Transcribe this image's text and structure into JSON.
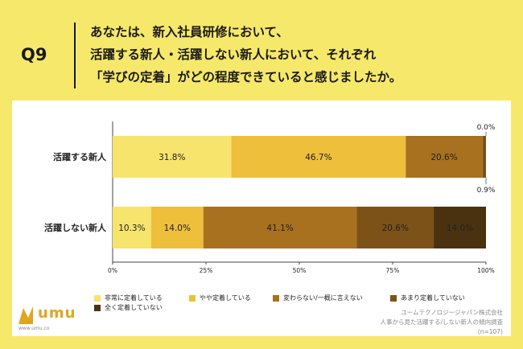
{
  "question": {
    "number": "Q9",
    "lines": [
      "あなたは、新入社員研修において、",
      "活躍する新人・活躍しない新人において、それぞれ",
      "「学びの定着」がどの程度できていると感じましたか。"
    ]
  },
  "chart_data": {
    "type": "bar",
    "orientation": "horizontal-stacked-100",
    "categories": [
      "活躍する新人",
      "活躍しない新人"
    ],
    "series": [
      {
        "name": "非常に定着している",
        "color": "#f6e46d",
        "values": [
          31.8,
          10.3
        ]
      },
      {
        "name": "やや定着している",
        "color": "#eebf3b",
        "values": [
          46.7,
          14.0
        ]
      },
      {
        "name": "変わらない/一概に言えない",
        "color": "#a8711f",
        "values": [
          20.6,
          41.1
        ]
      },
      {
        "name": "あまり定着していない",
        "color": "#7d5218",
        "values": [
          0.9,
          20.6
        ]
      },
      {
        "name": "全く定着していない",
        "color": "#4a3211",
        "values": [
          0.0,
          14.0
        ]
      }
    ],
    "data_labels": [
      [
        "31.8%",
        "46.7%",
        "20.6%",
        "0.9%",
        "0.0%"
      ],
      [
        "10.3%",
        "14.0%",
        "41.1%",
        "20.6%",
        "14.0%"
      ]
    ],
    "x_ticks": [
      "0%",
      "25%",
      "50%",
      "75%",
      "100%"
    ],
    "xlim": [
      0,
      100
    ],
    "legend_position": "bottom",
    "grid": false
  },
  "logo": {
    "text": "umu",
    "url": "www.umu.co"
  },
  "source": {
    "lines": [
      "ユームテクノロジージャパン株式会社",
      "人事から見た活躍する/しない新人の傾向調査",
      "(n=107)"
    ]
  }
}
